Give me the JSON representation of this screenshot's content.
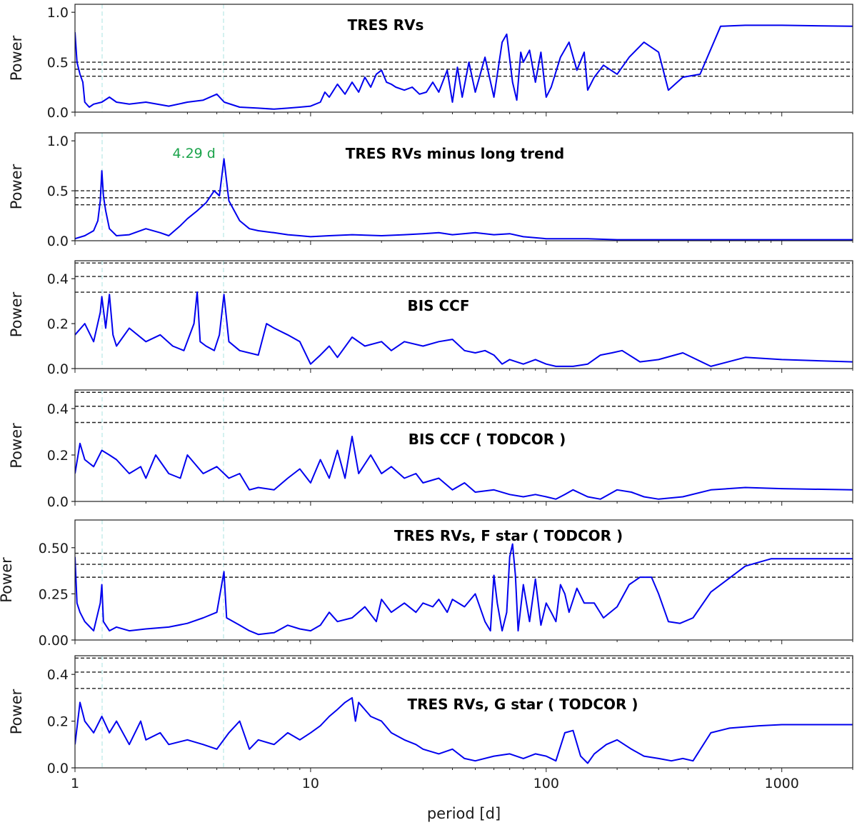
{
  "figure": {
    "xlabel": "period [d]"
  },
  "chart_data": [
    {
      "type": "line",
      "title": "TRES RVs",
      "xlabel": "",
      "ylabel": "Power",
      "xscale": "log",
      "xlim": [
        1,
        2000
      ],
      "ylim": [
        0,
        1.08
      ],
      "yticks": [
        "0.0",
        "0.5",
        "1.0"
      ],
      "ytick_values": [
        0.0,
        0.5,
        1.0
      ],
      "fap_levels": [
        0.36,
        0.43,
        0.5
      ],
      "series": [
        {
          "color": "#0000ee",
          "x": [
            1,
            1.02,
            1.05,
            1.08,
            1.1,
            1.15,
            1.2,
            1.3,
            1.4,
            1.5,
            1.7,
            2,
            2.5,
            3,
            3.5,
            4,
            4.3,
            5,
            6,
            7,
            8,
            9,
            10,
            11,
            11.5,
            12,
            13,
            14,
            15,
            16,
            17,
            18,
            19,
            20,
            21,
            22,
            23,
            25,
            27,
            29,
            31,
            33,
            35,
            38,
            40,
            42,
            44,
            47,
            50,
            55,
            60,
            65,
            68,
            72,
            75,
            78,
            80,
            85,
            90,
            95,
            100,
            105,
            115,
            125,
            135,
            145,
            150,
            160,
            175,
            200,
            225,
            260,
            300,
            330,
            380,
            450,
            550,
            700,
            1000,
            2000
          ],
          "y": [
            0.8,
            0.5,
            0.38,
            0.3,
            0.1,
            0.05,
            0.08,
            0.1,
            0.15,
            0.1,
            0.08,
            0.1,
            0.06,
            0.1,
            0.12,
            0.18,
            0.1,
            0.05,
            0.04,
            0.03,
            0.04,
            0.05,
            0.06,
            0.1,
            0.2,
            0.15,
            0.28,
            0.18,
            0.3,
            0.2,
            0.35,
            0.25,
            0.38,
            0.42,
            0.3,
            0.28,
            0.25,
            0.22,
            0.25,
            0.18,
            0.2,
            0.3,
            0.2,
            0.42,
            0.1,
            0.45,
            0.15,
            0.5,
            0.2,
            0.55,
            0.15,
            0.7,
            0.78,
            0.3,
            0.12,
            0.6,
            0.5,
            0.62,
            0.3,
            0.6,
            0.15,
            0.25,
            0.55,
            0.7,
            0.42,
            0.6,
            0.22,
            0.35,
            0.47,
            0.38,
            0.55,
            0.7,
            0.6,
            0.22,
            0.35,
            0.38,
            0.86,
            0.87,
            0.87,
            0.86
          ]
        }
      ]
    },
    {
      "type": "line",
      "title": "TRES RVs minus long trend",
      "xlabel": "",
      "ylabel": "Power",
      "xscale": "log",
      "xlim": [
        1,
        2000
      ],
      "ylim": [
        0,
        1.08
      ],
      "yticks": [
        "0.0",
        "0.5",
        "1.0"
      ],
      "ytick_values": [
        0.0,
        0.5,
        1.0
      ],
      "fap_levels": [
        0.36,
        0.43,
        0.5
      ],
      "annotation": {
        "text": "4.29 d",
        "x": 4.29
      },
      "series": [
        {
          "color": "#0000ee",
          "x": [
            1,
            1.1,
            1.2,
            1.25,
            1.28,
            1.3,
            1.32,
            1.35,
            1.4,
            1.5,
            1.7,
            2,
            2.3,
            2.5,
            2.8,
            3,
            3.3,
            3.6,
            3.9,
            4.1,
            4.29,
            4.5,
            5,
            5.5,
            6,
            7,
            8,
            9,
            10,
            12,
            15,
            20,
            25,
            30,
            35,
            40,
            50,
            60,
            70,
            80,
            100,
            150,
            200,
            300,
            500,
            1000,
            2000
          ],
          "y": [
            0.02,
            0.05,
            0.1,
            0.2,
            0.4,
            0.7,
            0.45,
            0.3,
            0.12,
            0.05,
            0.06,
            0.12,
            0.08,
            0.05,
            0.15,
            0.22,
            0.3,
            0.38,
            0.5,
            0.45,
            0.82,
            0.4,
            0.2,
            0.12,
            0.1,
            0.08,
            0.06,
            0.05,
            0.04,
            0.05,
            0.06,
            0.05,
            0.06,
            0.07,
            0.08,
            0.06,
            0.08,
            0.06,
            0.07,
            0.04,
            0.02,
            0.02,
            0.01,
            0.01,
            0.01,
            0.01,
            0.01
          ]
        }
      ]
    },
    {
      "type": "line",
      "title": "BIS CCF",
      "xlabel": "",
      "ylabel": "Power",
      "xscale": "log",
      "xlim": [
        1,
        2000
      ],
      "ylim": [
        0,
        0.48
      ],
      "yticks": [
        "0.0",
        "0.2",
        "0.4"
      ],
      "ytick_values": [
        0.0,
        0.2,
        0.4
      ],
      "fap_levels": [
        0.34,
        0.41,
        0.47
      ],
      "series": [
        {
          "color": "#0000ee",
          "x": [
            1,
            1.1,
            1.2,
            1.28,
            1.3,
            1.35,
            1.4,
            1.45,
            1.5,
            1.7,
            2,
            2.3,
            2.6,
            2.9,
            3.2,
            3.3,
            3.4,
            3.6,
            3.9,
            4.1,
            4.29,
            4.5,
            5,
            6,
            6.5,
            7,
            8,
            9,
            10,
            11,
            12,
            13,
            15,
            17,
            20,
            22,
            25,
            30,
            35,
            40,
            45,
            50,
            55,
            60,
            65,
            70,
            80,
            90,
            100,
            110,
            130,
            150,
            170,
            190,
            210,
            250,
            300,
            380,
            500,
            700,
            1000,
            2000
          ],
          "y": [
            0.15,
            0.2,
            0.12,
            0.25,
            0.32,
            0.18,
            0.33,
            0.15,
            0.1,
            0.18,
            0.12,
            0.15,
            0.1,
            0.08,
            0.2,
            0.34,
            0.12,
            0.1,
            0.08,
            0.15,
            0.33,
            0.12,
            0.08,
            0.06,
            0.2,
            0.18,
            0.15,
            0.12,
            0.02,
            0.06,
            0.1,
            0.05,
            0.14,
            0.1,
            0.12,
            0.08,
            0.12,
            0.1,
            0.12,
            0.13,
            0.08,
            0.07,
            0.08,
            0.06,
            0.02,
            0.04,
            0.02,
            0.04,
            0.02,
            0.01,
            0.01,
            0.02,
            0.06,
            0.07,
            0.08,
            0.03,
            0.04,
            0.07,
            0.01,
            0.05,
            0.04,
            0.03
          ]
        }
      ]
    },
    {
      "type": "line",
      "title": "BIS CCF ( TODCOR )",
      "xlabel": "",
      "ylabel": "Power",
      "xscale": "log",
      "xlim": [
        1,
        2000
      ],
      "ylim": [
        0,
        0.48
      ],
      "yticks": [
        "0.0",
        "0.2",
        "0.4"
      ],
      "ytick_values": [
        0.0,
        0.2,
        0.4
      ],
      "fap_levels": [
        0.34,
        0.41,
        0.47
      ],
      "series": [
        {
          "color": "#0000ee",
          "x": [
            1,
            1.05,
            1.1,
            1.2,
            1.3,
            1.4,
            1.5,
            1.7,
            1.9,
            2,
            2.2,
            2.5,
            2.8,
            3,
            3.5,
            4,
            4.5,
            5,
            5.5,
            6,
            7,
            8,
            9,
            10,
            11,
            12,
            13,
            14,
            15,
            16,
            18,
            20,
            22,
            25,
            28,
            30,
            35,
            40,
            45,
            50,
            60,
            70,
            80,
            90,
            100,
            110,
            120,
            130,
            150,
            170,
            200,
            230,
            260,
            300,
            380,
            500,
            700,
            1000,
            2000
          ],
          "y": [
            0.12,
            0.25,
            0.18,
            0.15,
            0.22,
            0.2,
            0.18,
            0.12,
            0.15,
            0.1,
            0.2,
            0.12,
            0.1,
            0.2,
            0.12,
            0.15,
            0.1,
            0.12,
            0.05,
            0.06,
            0.05,
            0.1,
            0.14,
            0.08,
            0.18,
            0.1,
            0.22,
            0.1,
            0.28,
            0.12,
            0.2,
            0.12,
            0.15,
            0.1,
            0.12,
            0.08,
            0.1,
            0.05,
            0.08,
            0.04,
            0.05,
            0.03,
            0.02,
            0.03,
            0.02,
            0.01,
            0.03,
            0.05,
            0.02,
            0.01,
            0.05,
            0.04,
            0.02,
            0.01,
            0.02,
            0.05,
            0.06,
            0.055,
            0.05
          ]
        }
      ]
    },
    {
      "type": "line",
      "title": "TRES RVs, F star ( TODCOR )",
      "xlabel": "",
      "ylabel": "Power",
      "xscale": "log",
      "xlim": [
        1,
        2000
      ],
      "ylim": [
        0,
        0.65
      ],
      "yticks": [
        "0.00",
        "0.25",
        "0.50"
      ],
      "ytick_values": [
        0.0,
        0.25,
        0.5
      ],
      "fap_levels": [
        0.34,
        0.41,
        0.47
      ],
      "series": [
        {
          "color": "#0000ee",
          "x": [
            1,
            1.02,
            1.05,
            1.1,
            1.2,
            1.28,
            1.3,
            1.32,
            1.4,
            1.5,
            1.7,
            2,
            2.5,
            3,
            3.5,
            4,
            4.29,
            4.4,
            5,
            5.5,
            6,
            7,
            8,
            9,
            10,
            11,
            12,
            13,
            15,
            17,
            19,
            20,
            22,
            25,
            28,
            30,
            33,
            35,
            38,
            40,
            45,
            50,
            55,
            58,
            60,
            62,
            65,
            68,
            70,
            72,
            74,
            76,
            80,
            85,
            90,
            95,
            100,
            105,
            110,
            115,
            120,
            125,
            135,
            145,
            160,
            175,
            200,
            225,
            250,
            280,
            300,
            330,
            370,
            420,
            500,
            700,
            900,
            1200,
            2000
          ],
          "y": [
            0.45,
            0.2,
            0.15,
            0.1,
            0.05,
            0.2,
            0.3,
            0.1,
            0.05,
            0.07,
            0.05,
            0.06,
            0.07,
            0.09,
            0.12,
            0.15,
            0.37,
            0.12,
            0.08,
            0.05,
            0.03,
            0.04,
            0.08,
            0.06,
            0.05,
            0.08,
            0.15,
            0.1,
            0.12,
            0.18,
            0.1,
            0.22,
            0.15,
            0.2,
            0.15,
            0.2,
            0.18,
            0.22,
            0.15,
            0.22,
            0.18,
            0.25,
            0.1,
            0.05,
            0.35,
            0.2,
            0.05,
            0.15,
            0.45,
            0.52,
            0.35,
            0.05,
            0.3,
            0.1,
            0.33,
            0.08,
            0.2,
            0.15,
            0.1,
            0.3,
            0.25,
            0.15,
            0.28,
            0.2,
            0.2,
            0.12,
            0.18,
            0.3,
            0.34,
            0.34,
            0.25,
            0.1,
            0.09,
            0.12,
            0.26,
            0.4,
            0.44,
            0.44,
            0.44
          ]
        }
      ]
    },
    {
      "type": "line",
      "title": "TRES RVs, G star ( TODCOR )",
      "xlabel": "period [d]",
      "ylabel": "Power",
      "xscale": "log",
      "xlim": [
        1,
        2000
      ],
      "ylim": [
        0,
        0.48
      ],
      "yticks": [
        "0.0",
        "0.2",
        "0.4"
      ],
      "ytick_values": [
        0.0,
        0.2,
        0.4
      ],
      "xticks": [
        "1",
        "10",
        "100",
        "1000"
      ],
      "xtick_values": [
        1,
        10,
        100,
        1000
      ],
      "fap_levels": [
        0.34,
        0.41,
        0.47
      ],
      "series": [
        {
          "color": "#0000ee",
          "x": [
            1,
            1.05,
            1.1,
            1.2,
            1.3,
            1.4,
            1.5,
            1.7,
            1.9,
            2,
            2.3,
            2.5,
            3,
            3.5,
            4,
            4.5,
            5,
            5.5,
            6,
            7,
            8,
            9,
            10,
            11,
            12,
            13,
            14,
            15,
            15.5,
            16,
            18,
            20,
            22,
            25,
            28,
            30,
            35,
            40,
            45,
            50,
            60,
            70,
            80,
            90,
            100,
            110,
            120,
            130,
            140,
            150,
            160,
            180,
            200,
            230,
            260,
            300,
            340,
            380,
            420,
            500,
            600,
            800,
            1000,
            2000
          ],
          "y": [
            0.1,
            0.28,
            0.2,
            0.15,
            0.22,
            0.15,
            0.2,
            0.1,
            0.2,
            0.12,
            0.15,
            0.1,
            0.12,
            0.1,
            0.08,
            0.15,
            0.2,
            0.08,
            0.12,
            0.1,
            0.15,
            0.12,
            0.15,
            0.18,
            0.22,
            0.25,
            0.28,
            0.3,
            0.2,
            0.28,
            0.22,
            0.2,
            0.15,
            0.12,
            0.1,
            0.08,
            0.06,
            0.08,
            0.04,
            0.03,
            0.05,
            0.06,
            0.04,
            0.06,
            0.05,
            0.03,
            0.15,
            0.16,
            0.05,
            0.02,
            0.06,
            0.1,
            0.12,
            0.08,
            0.05,
            0.04,
            0.03,
            0.04,
            0.03,
            0.15,
            0.17,
            0.18,
            0.185,
            0.185
          ]
        }
      ]
    }
  ]
}
